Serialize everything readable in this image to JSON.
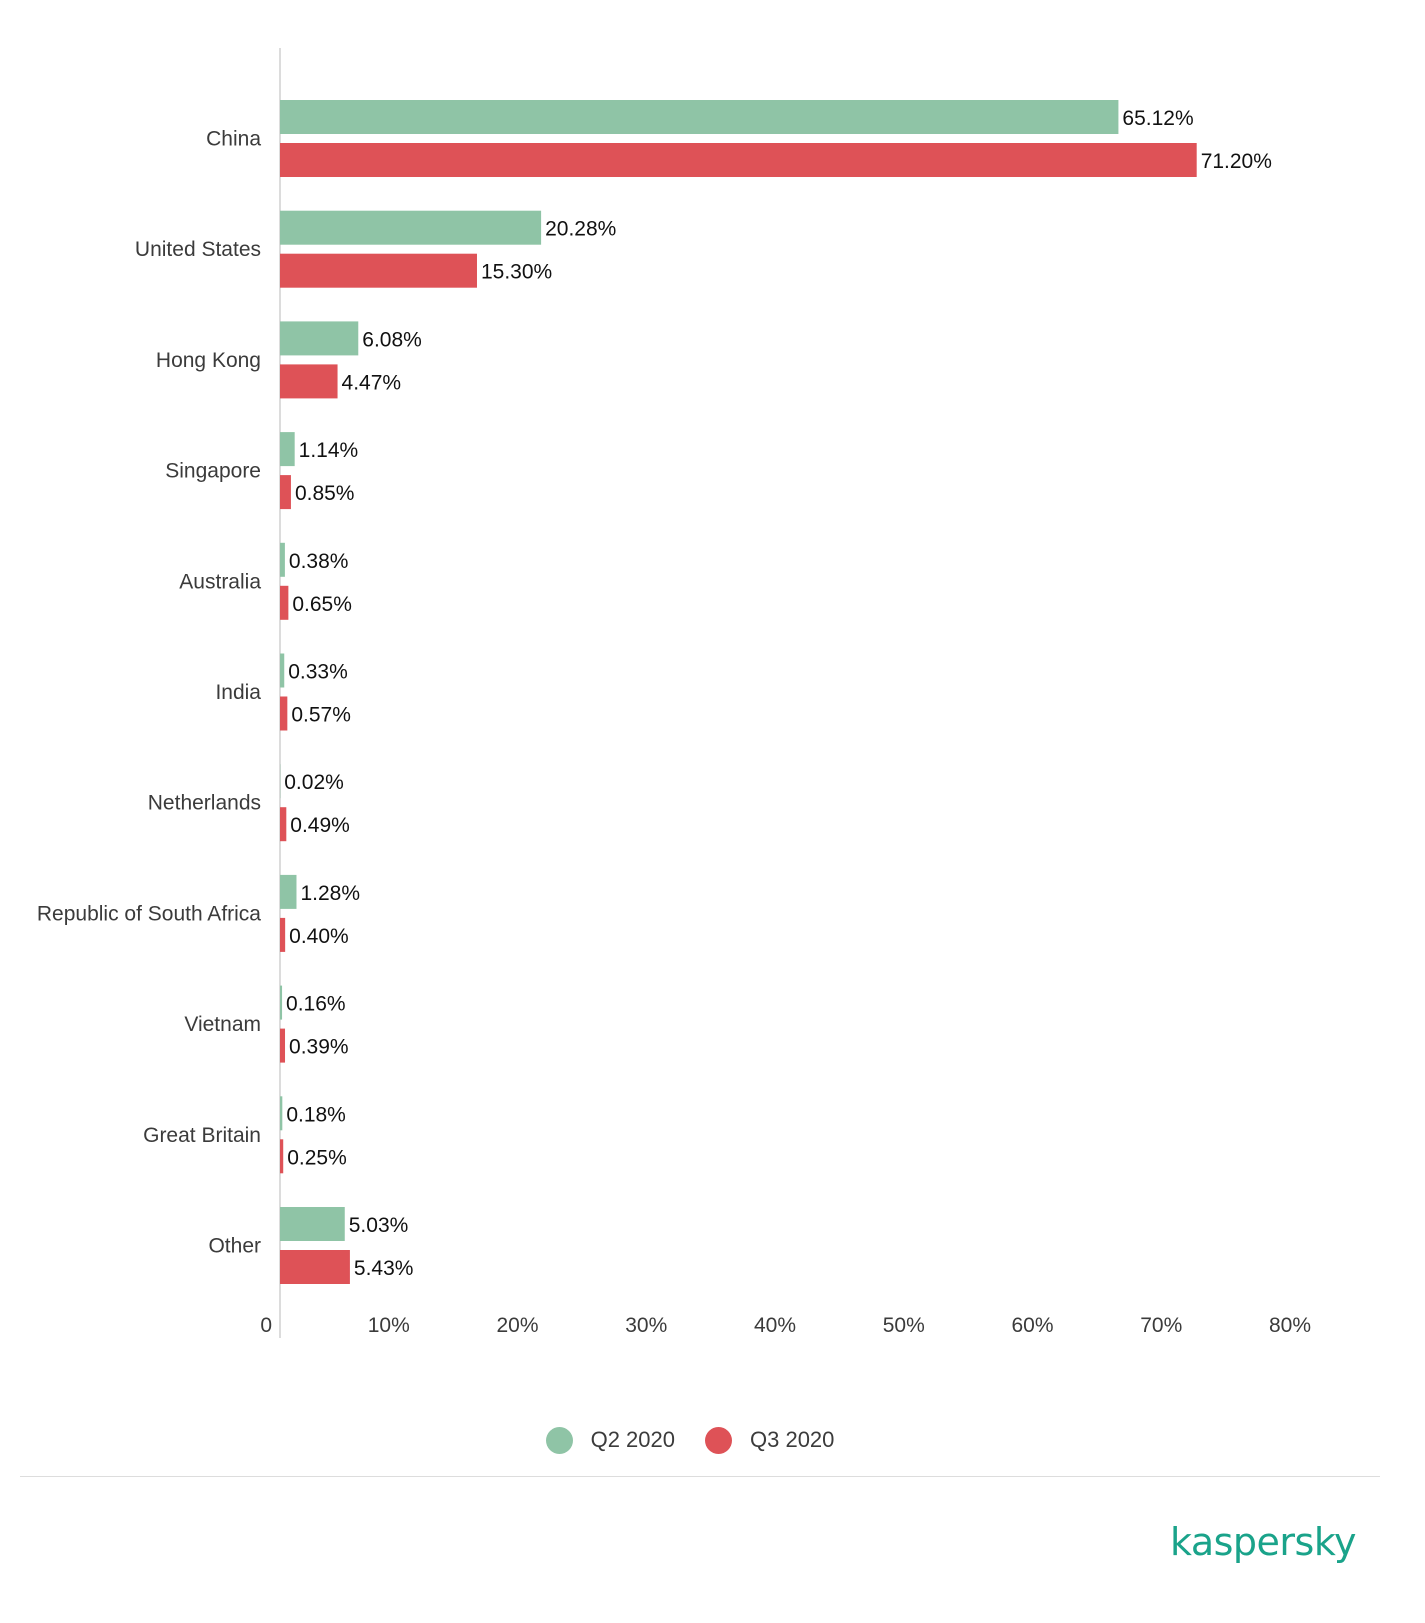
{
  "chart_data": {
    "type": "bar",
    "orientation": "horizontal",
    "categories": [
      "China",
      "United States",
      "Hong Kong",
      "Singapore",
      "Australia",
      "India",
      "Netherlands",
      "Republic of South Africa",
      "Vietnam",
      "Great Britain",
      "Other"
    ],
    "series": [
      {
        "name": "Q2 2020",
        "color": "#8fc4a6",
        "values": [
          65.12,
          20.28,
          6.08,
          1.14,
          0.38,
          0.33,
          0.02,
          1.28,
          0.16,
          0.18,
          5.03
        ],
        "labels": [
          "65.12%",
          "20.28%",
          "6.08%",
          "1.14%",
          "0.38%",
          "0.33%",
          "0.02%",
          "1.28%",
          "0.16%",
          "0.18%",
          "5.03%"
        ]
      },
      {
        "name": "Q3 2020",
        "color": "#de5257",
        "values": [
          71.2,
          15.3,
          4.47,
          0.85,
          0.65,
          0.57,
          0.49,
          0.4,
          0.39,
          0.25,
          5.43
        ],
        "labels": [
          "71.20%",
          "15.30%",
          "4.47%",
          "0.85%",
          "0.65%",
          "0.57%",
          "0.49%",
          "0.40%",
          "0.39%",
          "0.25%",
          "5.43%"
        ]
      }
    ],
    "xlim": [
      0,
      80
    ],
    "xticks": [
      0,
      10,
      20,
      30,
      40,
      50,
      60,
      70,
      80
    ],
    "xtick_labels": [
      "0",
      "10%",
      "20%",
      "30%",
      "40%",
      "50%",
      "60%",
      "70%",
      "80%"
    ],
    "grid": false,
    "legend_position": "bottom-center"
  },
  "legend": [
    {
      "label": "Q2 2020",
      "color": "#8fc4a6"
    },
    {
      "label": "Q3 2020",
      "color": "#de5257"
    }
  ],
  "brand": {
    "logo_text": "kaspersky",
    "color": "#1aa38a"
  }
}
